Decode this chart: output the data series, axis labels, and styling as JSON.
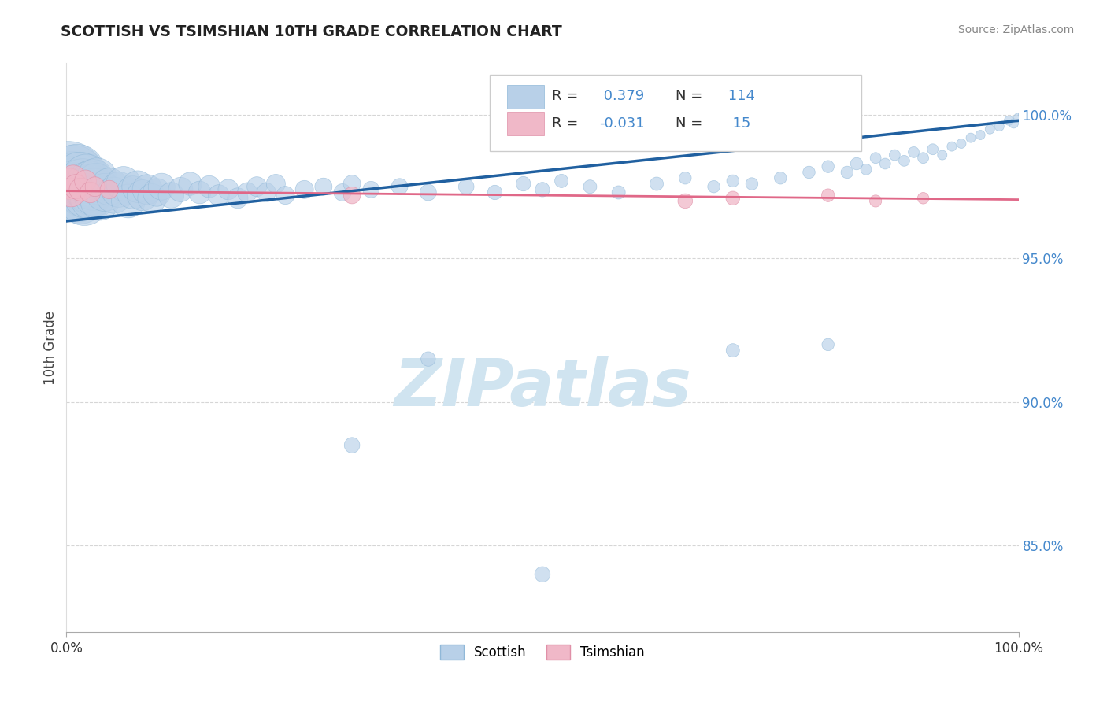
{
  "title": "SCOTTISH VS TSIMSHIAN 10TH GRADE CORRELATION CHART",
  "source": "Source: ZipAtlas.com",
  "ylabel": "10th Grade",
  "xlim": [
    0.0,
    100.0
  ],
  "ylim": [
    82.0,
    101.8
  ],
  "yticks": [
    85.0,
    90.0,
    95.0,
    100.0
  ],
  "ytick_labels": [
    "85.0%",
    "90.0%",
    "95.0%",
    "100.0%"
  ],
  "scottish_R": 0.379,
  "scottish_N": 114,
  "tsimshian_R": -0.031,
  "tsimshian_N": 15,
  "scottish_color": "#b8d0e8",
  "scottish_edge_color": "#90b8d8",
  "scottish_line_color": "#2060a0",
  "tsimshian_color": "#f0b8c8",
  "tsimshian_edge_color": "#e090a8",
  "tsimshian_line_color": "#e06888",
  "watermark_color": "#d0e4f0",
  "background_color": "#ffffff",
  "grid_color": "#cccccc",
  "ytick_color": "#4488cc",
  "scot_line_y0": 96.3,
  "scot_line_y1": 99.8,
  "tsim_line_y0": 97.35,
  "tsim_line_y1": 97.05
}
